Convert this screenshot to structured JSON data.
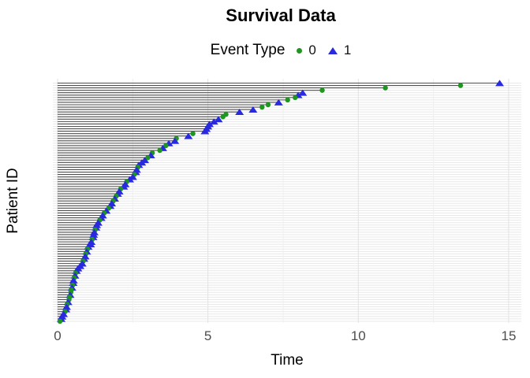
{
  "title": "Survival Data",
  "legend": {
    "title": "Event Type",
    "items": [
      {
        "label": "0",
        "marker": "circle",
        "color": "#1e9620"
      },
      {
        "label": "1",
        "marker": "triangle",
        "color": "#2929e0"
      }
    ]
  },
  "axes": {
    "x_label": "Time",
    "y_label": "Patient ID",
    "x_ticks": [
      "0",
      "5",
      "10",
      "15"
    ]
  },
  "colors": {
    "event0": "#1e9620",
    "event1": "#2929e0",
    "segment": "#4f4f4f",
    "grid_major": "#e2e2e2",
    "grid_minor": "#efefef",
    "grid_row": "#e8e8e8",
    "tick_text": "#4d4d4d",
    "background": "#ffffff"
  },
  "chart_data": {
    "type": "scatter",
    "subtype": "horizontal-segment-event-plot",
    "title": "Survival Data",
    "xlabel": "Time",
    "ylabel": "Patient ID",
    "x_tick_values": [
      0,
      5,
      10,
      15
    ],
    "x_minor_gridlines": [
      2.5,
      7.5,
      12.5
    ],
    "xlim": [
      0,
      15.4
    ],
    "n_patients": 100,
    "legend_title": "Event Type",
    "legend_entries": [
      "0",
      "1"
    ],
    "note": "100 patients, one horizontal segment per patient from time 0 to event time, ordered top-to-bottom by descending time; event=1 blue triangle, event=0 green circle",
    "times": [
      14.7,
      13.4,
      10.9,
      8.8,
      8.15,
      8.0,
      7.9,
      7.65,
      7.35,
      7.0,
      6.8,
      6.5,
      6.05,
      5.6,
      5.5,
      5.35,
      5.2,
      5.05,
      5.0,
      4.95,
      4.9,
      4.5,
      4.35,
      3.95,
      3.9,
      3.7,
      3.6,
      3.5,
      3.4,
      3.15,
      3.1,
      3.0,
      2.9,
      2.8,
      2.7,
      2.67,
      2.63,
      2.6,
      2.55,
      2.5,
      2.4,
      2.3,
      2.25,
      2.2,
      2.1,
      2.05,
      2.0,
      1.95,
      1.9,
      1.85,
      1.8,
      1.75,
      1.7,
      1.62,
      1.55,
      1.5,
      1.45,
      1.4,
      1.35,
      1.3,
      1.28,
      1.25,
      1.22,
      1.2,
      1.18,
      1.15,
      1.12,
      1.1,
      1.02,
      1.0,
      0.97,
      0.94,
      0.92,
      0.88,
      0.85,
      0.82,
      0.75,
      0.68,
      0.63,
      0.6,
      0.58,
      0.55,
      0.53,
      0.52,
      0.5,
      0.48,
      0.46,
      0.44,
      0.42,
      0.4,
      0.38,
      0.35,
      0.32,
      0.3,
      0.28,
      0.25,
      0.2,
      0.15,
      0.12,
      0.08
    ],
    "events": [
      1,
      0,
      0,
      0,
      1,
      1,
      0,
      0,
      1,
      0,
      0,
      1,
      1,
      0,
      0,
      1,
      1,
      1,
      1,
      1,
      1,
      0,
      1,
      0,
      1,
      1,
      0,
      1,
      0,
      0,
      1,
      0,
      1,
      1,
      1,
      0,
      1,
      1,
      0,
      1,
      1,
      0,
      1,
      1,
      0,
      1,
      1,
      0,
      1,
      0,
      1,
      1,
      0,
      1,
      0,
      1,
      1,
      0,
      1,
      1,
      1,
      0,
      1,
      1,
      1,
      0,
      1,
      1,
      1,
      0,
      1,
      0,
      1,
      1,
      0,
      1,
      1,
      1,
      1,
      0,
      1,
      0,
      1,
      1,
      0,
      1,
      0,
      0,
      1,
      0,
      0,
      1,
      0,
      1,
      1,
      0,
      1,
      1,
      1,
      0
    ]
  }
}
